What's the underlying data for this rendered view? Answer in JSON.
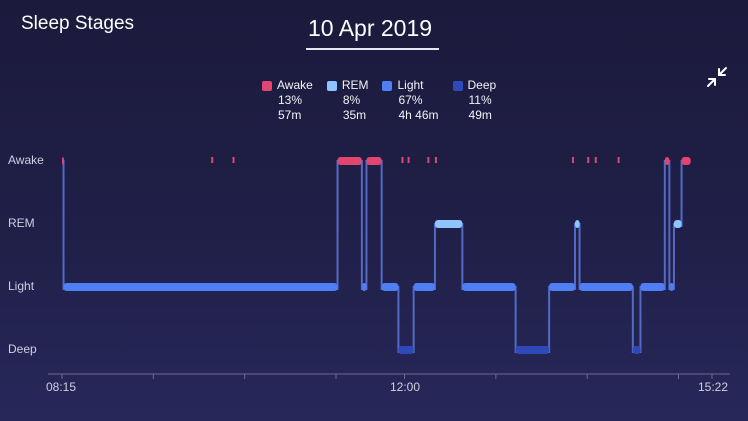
{
  "header": {
    "title": "Sleep Stages"
  },
  "date": {
    "label": "10 Apr 2019"
  },
  "icons": {
    "collapse": "collapse-arrows-icon"
  },
  "colors": {
    "awake": "#e0466f",
    "rem": "#8ec4ff",
    "light": "#4f7ef5",
    "deep": "#2f4ab8"
  },
  "legend": [
    {
      "key": "awake",
      "name": "Awake",
      "percent": "13%",
      "duration": "57m",
      "color": "#e0466f"
    },
    {
      "key": "rem",
      "name": "REM",
      "percent": "8%",
      "duration": "35m",
      "color": "#8ec4ff"
    },
    {
      "key": "light",
      "name": "Light",
      "percent": "67%",
      "duration": "4h 46m",
      "color": "#4f7ef5"
    },
    {
      "key": "deep",
      "name": "Deep",
      "percent": "11%",
      "duration": "49m",
      "color": "#2f4ab8"
    }
  ],
  "chart_data": {
    "type": "area",
    "y_levels": [
      "Awake",
      "REM",
      "Light",
      "Deep"
    ],
    "x_labels": [
      "08:15",
      "12:00",
      "15:22"
    ],
    "x_range": [
      "08:15",
      "15:22"
    ],
    "segments": [
      {
        "stage": "Awake",
        "start": "08:15",
        "end": "08:16"
      },
      {
        "stage": "Light",
        "start": "08:16",
        "end": "11:16"
      },
      {
        "stage": "Awake",
        "start": "11:16",
        "end": "11:32"
      },
      {
        "stage": "Light",
        "start": "11:32",
        "end": "11:35"
      },
      {
        "stage": "Awake",
        "start": "11:35",
        "end": "11:45"
      },
      {
        "stage": "Light",
        "start": "11:45",
        "end": "11:56"
      },
      {
        "stage": "Deep",
        "start": "11:56",
        "end": "12:06"
      },
      {
        "stage": "Light",
        "start": "12:06",
        "end": "12:20"
      },
      {
        "stage": "REM",
        "start": "12:20",
        "end": "12:38"
      },
      {
        "stage": "Light",
        "start": "12:38",
        "end": "13:13"
      },
      {
        "stage": "Deep",
        "start": "13:13",
        "end": "13:35"
      },
      {
        "stage": "Light",
        "start": "13:35",
        "end": "13:52"
      },
      {
        "stage": "REM",
        "start": "13:52",
        "end": "13:55"
      },
      {
        "stage": "Light",
        "start": "13:55",
        "end": "14:30"
      },
      {
        "stage": "Deep",
        "start": "14:30",
        "end": "14:35"
      },
      {
        "stage": "Light",
        "start": "14:35",
        "end": "14:51"
      },
      {
        "stage": "Awake",
        "start": "14:51",
        "end": "14:54"
      },
      {
        "stage": "Light",
        "start": "14:54",
        "end": "14:57"
      },
      {
        "stage": "REM",
        "start": "14:57",
        "end": "15:02"
      },
      {
        "stage": "Awake",
        "start": "15:02",
        "end": "15:08"
      }
    ],
    "brief_awakenings": [
      "09:53",
      "10:07",
      "11:58",
      "12:02",
      "12:15",
      "12:20",
      "13:50",
      "14:00",
      "14:05",
      "14:20"
    ]
  }
}
